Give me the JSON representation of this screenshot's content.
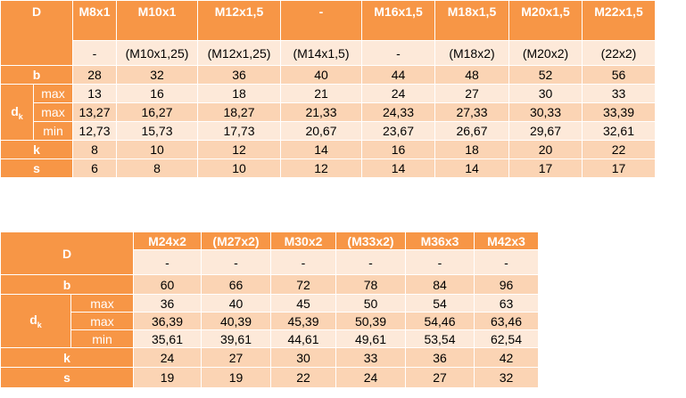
{
  "table1": {
    "d_label": "D",
    "sizes": [
      "M8x1",
      "M10x1",
      "M12x1,5",
      "-",
      "M16x1,5",
      "M18x1,5",
      "M20x1,5",
      "M22x1,5"
    ],
    "alt_sizes": [
      "-",
      "(M10x1,25)",
      "(M12x1,25)",
      "(M14x1,5)",
      "-",
      "(M18x2)",
      "(M20x2)",
      "(22x2)"
    ],
    "b_label": "b",
    "b": [
      "28",
      "32",
      "36",
      "40",
      "44",
      "48",
      "52",
      "56"
    ],
    "dk_label": "d",
    "dk_sub": "k",
    "dk_max_label": "max",
    "dk_max": [
      "13",
      "16",
      "18",
      "21",
      "24",
      "27",
      "30",
      "33"
    ],
    "dk2_max_label": "max",
    "dk2_max": [
      "13,27",
      "16,27",
      "18,27",
      "21,33",
      "24,33",
      "27,33",
      "30,33",
      "33,39"
    ],
    "dk2_min_label": "min",
    "dk2_min": [
      "12,73",
      "15,73",
      "17,73",
      "20,67",
      "23,67",
      "26,67",
      "29,67",
      "32,61"
    ],
    "k_label": "k",
    "k": [
      "8",
      "10",
      "12",
      "14",
      "16",
      "18",
      "20",
      "22"
    ],
    "s_label": "s",
    "s": [
      "6",
      "8",
      "10",
      "12",
      "14",
      "14",
      "17",
      "17"
    ]
  },
  "table2": {
    "d_label": "D",
    "sizes": [
      "M24x2",
      "(M27x2)",
      "M30x2",
      "(M33x2)",
      "M36x3",
      "M42x3"
    ],
    "alt_sizes": [
      "-",
      "-",
      "-",
      "-",
      "-",
      "-"
    ],
    "b_label": "b",
    "b": [
      "60",
      "66",
      "72",
      "78",
      "84",
      "96"
    ],
    "dk_label": "d",
    "dk_sub": "k",
    "dk_max_label": "max",
    "dk_max": [
      "36",
      "40",
      "45",
      "50",
      "54",
      "63"
    ],
    "dk2_max_label": "max",
    "dk2_max": [
      "36,39",
      "40,39",
      "45,39",
      "50,39",
      "54,46",
      "63,46"
    ],
    "dk2_min_label": "min",
    "dk2_min": [
      "35,61",
      "39,61",
      "44,61",
      "49,61",
      "53,54",
      "62,54"
    ],
    "k_label": "k",
    "k": [
      "24",
      "27",
      "30",
      "33",
      "36",
      "42"
    ],
    "s_label": "s",
    "s": [
      "19",
      "19",
      "22",
      "24",
      "27",
      "32"
    ]
  }
}
